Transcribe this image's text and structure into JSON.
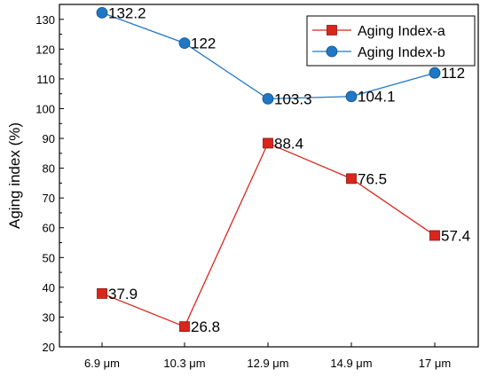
{
  "chart_data": {
    "type": "line",
    "categories": [
      "6.9 μm",
      "10.3 μm",
      "12.9 μm",
      "14.9 μm",
      "17 μm"
    ],
    "ylabel": "Aging index (%)",
    "xlabel": "",
    "ylim": [
      20,
      135
    ],
    "yticks": [
      20,
      30,
      40,
      50,
      60,
      70,
      80,
      90,
      100,
      110,
      120,
      130
    ],
    "grid": false,
    "legend_position": "top-right",
    "series": [
      {
        "name": "Aging Index-a",
        "values": [
          37.9,
          26.8,
          88.4,
          76.5,
          57.4
        ],
        "labels": [
          "37.9",
          "26.8",
          "88.4",
          "76.5",
          "57.4"
        ],
        "color": "#d9261c",
        "marker": "square"
      },
      {
        "name": "Aging Index-b",
        "values": [
          132.2,
          122,
          103.3,
          104.1,
          112
        ],
        "labels": [
          "132.2",
          "122",
          "103.3",
          "104.1",
          "112"
        ],
        "color": "#1f77c8",
        "marker": "circle"
      }
    ]
  }
}
